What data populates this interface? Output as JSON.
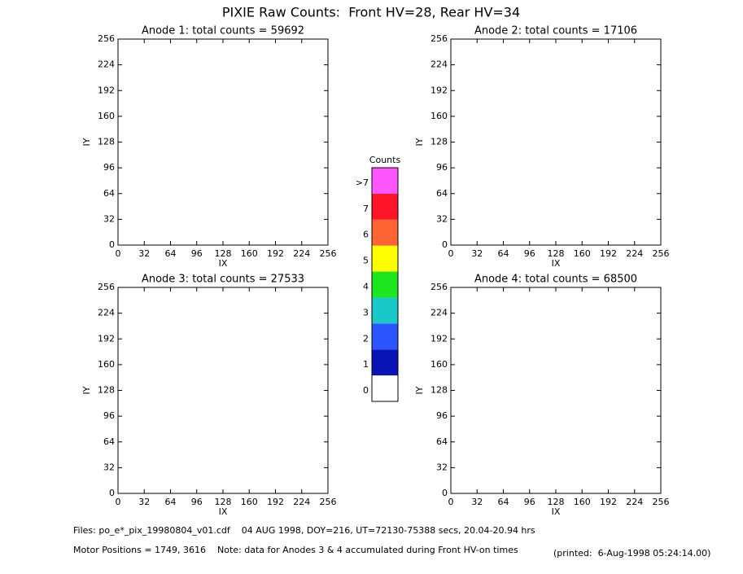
{
  "title": "PIXIE Raw Counts:  Front HV=28, Rear HV=34",
  "chart_data": [
    {
      "type": "heatmap",
      "title": "Anode 1: total counts = 59692",
      "xlabel": "IX",
      "ylabel": "IY",
      "xlim": [
        0,
        256
      ],
      "ylim": [
        0,
        256
      ],
      "xticks": [
        0,
        32,
        64,
        96,
        128,
        160,
        192,
        224,
        256
      ],
      "yticks": [
        0,
        32,
        64,
        96,
        128,
        160,
        192,
        224,
        256
      ]
    },
    {
      "type": "heatmap",
      "title": "Anode 2: total counts = 17106",
      "xlabel": "IX",
      "ylabel": "IY",
      "xlim": [
        0,
        256
      ],
      "ylim": [
        0,
        256
      ],
      "xticks": [
        0,
        32,
        64,
        96,
        128,
        160,
        192,
        224,
        256
      ],
      "yticks": [
        0,
        32,
        64,
        96,
        128,
        160,
        192,
        224,
        256
      ]
    },
    {
      "type": "heatmap",
      "title": "Anode 3: total counts = 27533",
      "xlabel": "IX",
      "ylabel": "IY",
      "xlim": [
        0,
        256
      ],
      "ylim": [
        0,
        256
      ],
      "xticks": [
        0,
        32,
        64,
        96,
        128,
        160,
        192,
        224,
        256
      ],
      "yticks": [
        0,
        32,
        64,
        96,
        128,
        160,
        192,
        224,
        256
      ]
    },
    {
      "type": "heatmap",
      "title": "Anode 4: total counts = 68500",
      "xlabel": "IX",
      "ylabel": "IY",
      "xlim": [
        0,
        256
      ],
      "ylim": [
        0,
        256
      ],
      "xticks": [
        0,
        32,
        64,
        96,
        128,
        160,
        192,
        224,
        256
      ],
      "yticks": [
        0,
        32,
        64,
        96,
        128,
        160,
        192,
        224,
        256
      ]
    }
  ],
  "colorbar": {
    "title": "Counts",
    "categories": [
      "0",
      "1",
      "2",
      "3",
      "4",
      "5",
      "6",
      "7",
      ">7"
    ],
    "colors": [
      "#ffffff",
      "#0a14b4",
      "#2d55ff",
      "#19c8c8",
      "#1ee61e",
      "#ffff00",
      "#ff6432",
      "#ff1428",
      "#ff55ff"
    ]
  },
  "footer": {
    "files": "Files: po_e*_pix_19980804_v01.cdf    04 AUG 1998, DOY=216, UT=72130-75388 secs, 20.04-20.94 hrs",
    "motor": "Motor Positions = 1749, 3616    Note: data for Anodes 3 & 4 accumulated during Front HV-on times",
    "printed": "(printed:  6-Aug-1998 05:24:14.00)"
  }
}
